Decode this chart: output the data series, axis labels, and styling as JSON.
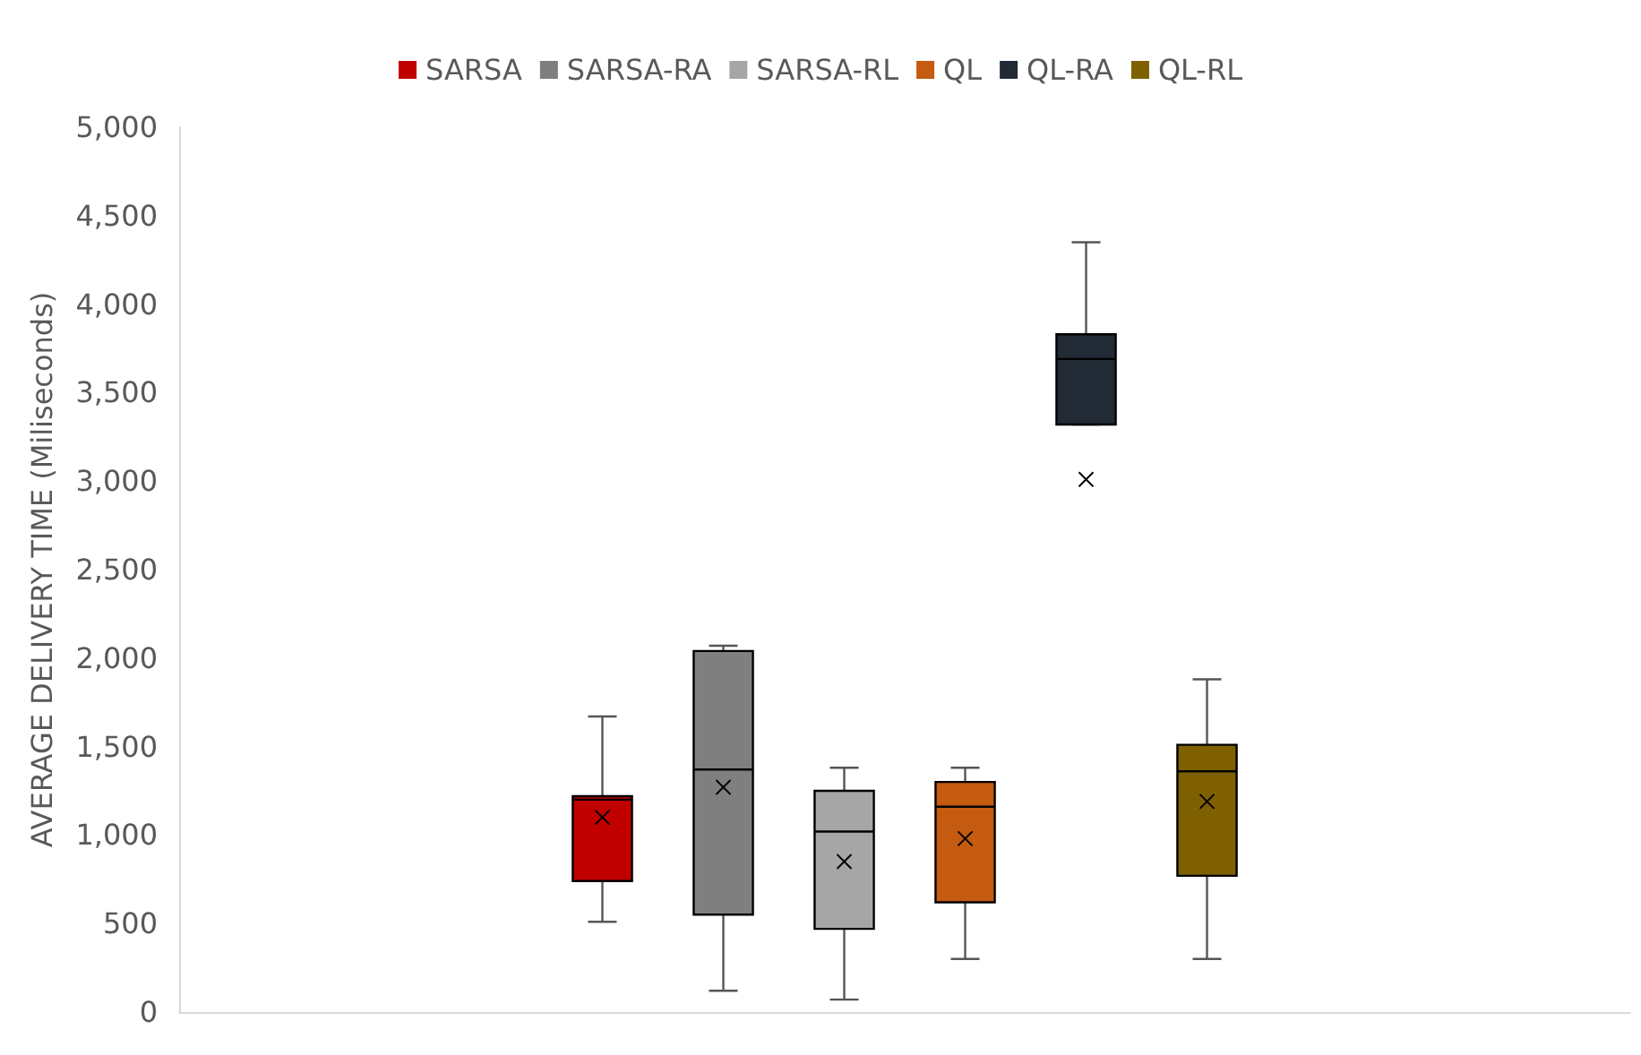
{
  "chart_data": {
    "type": "box",
    "ylabel": "AVERAGE DELIVERY TIME (Miliseconds)",
    "categories": [
      null
    ],
    "series": [
      {
        "name": "SARSA",
        "color": "#c00000",
        "boxes": [
          {
            "low": 510,
            "q1": 740,
            "median": 1200,
            "q3": 1220,
            "high": 1670,
            "mean": 1100
          }
        ]
      },
      {
        "name": "SARSA-RA",
        "color": "#7f7f7f",
        "boxes": [
          {
            "low": 120,
            "q1": 550,
            "median": 1370,
            "q3": 2040,
            "high": 2070,
            "mean": 1270
          }
        ]
      },
      {
        "name": "SARSA-RL",
        "color": "#a6a6a6",
        "boxes": [
          {
            "low": 70,
            "q1": 470,
            "median": 1020,
            "q3": 1250,
            "high": 1380,
            "mean": 850
          }
        ]
      },
      {
        "name": "QL",
        "color": "#c55a11",
        "boxes": [
          {
            "low": 300,
            "q1": 620,
            "median": 1160,
            "q3": 1300,
            "high": 1380,
            "mean": 980
          }
        ]
      },
      {
        "name": "QL-RA",
        "color": "#222a35",
        "boxes": [
          {
            "low": 3320,
            "q1": 3320,
            "median": 3690,
            "q3": 3830,
            "high": 4350,
            "mean": 3010
          }
        ]
      },
      {
        "name": "QL-RL",
        "color": "#7f6000",
        "boxes": [
          {
            "low": 300,
            "q1": 770,
            "median": 1360,
            "q3": 1510,
            "high": 1880,
            "mean": 1190
          }
        ]
      }
    ],
    "ylim": [
      0,
      5000
    ],
    "yticks": [
      0,
      500,
      {
        "value": 1000,
        "label": "1,000"
      },
      {
        "value": 1500,
        "label": "1,500"
      },
      {
        "value": 2000,
        "label": "2,000"
      },
      {
        "value": 2500,
        "label": "2,500"
      },
      {
        "value": 3000,
        "label": "3,000"
      },
      {
        "value": 3500,
        "label": "3,500"
      },
      {
        "value": 4000,
        "label": "4,000"
      },
      {
        "value": 4500,
        "label": "4,500"
      },
      {
        "value": 5000,
        "label": "5,000"
      }
    ],
    "grid": false,
    "legend": "top",
    "marker": "cross"
  }
}
